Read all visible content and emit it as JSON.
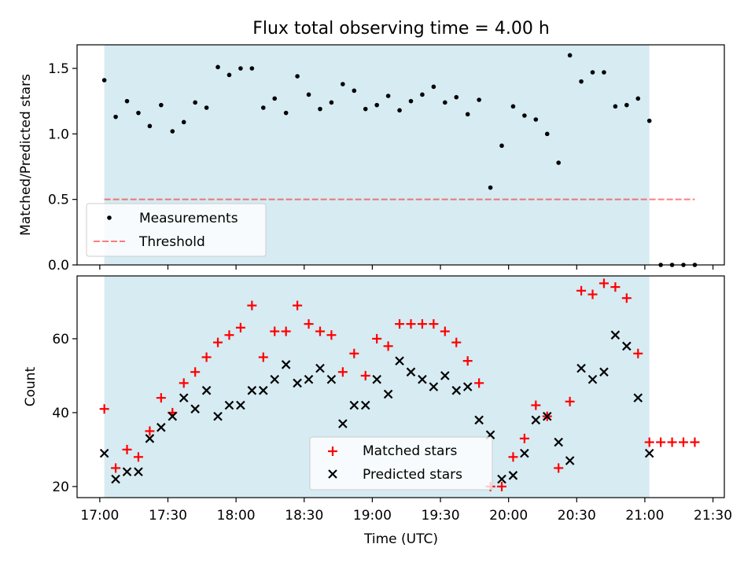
{
  "chart_data": [
    {
      "type": "scatter",
      "title": "Flux total observing time = 4.00 h",
      "ylabel": "Matched/Predicted stars",
      "ylim": [
        0,
        1.68
      ],
      "yticks": [
        "0.0",
        "0.5",
        "1.0",
        "1.5"
      ],
      "xlim_minutes": [
        1010,
        1295
      ],
      "grid": false,
      "legend_position": "lower-left",
      "observing_window": {
        "start": "17:02",
        "end": "21:02",
        "color": "#add8e6"
      },
      "threshold": {
        "name": "Threshold",
        "value": 0.5,
        "from": "17:02",
        "to": "21:22",
        "color": "#ff0000"
      },
      "series": [
        {
          "name": "Measurements",
          "color": "#000000",
          "marker": "dot",
          "x": [
            "17:02",
            "17:07",
            "17:12",
            "17:17",
            "17:22",
            "17:27",
            "17:32",
            "17:37",
            "17:42",
            "17:47",
            "17:52",
            "17:57",
            "18:02",
            "18:07",
            "18:12",
            "18:17",
            "18:22",
            "18:27",
            "18:32",
            "18:37",
            "18:42",
            "18:47",
            "18:52",
            "18:57",
            "19:02",
            "19:07",
            "19:12",
            "19:17",
            "19:22",
            "19:27",
            "19:32",
            "19:37",
            "19:42",
            "19:47",
            "19:52",
            "19:57",
            "20:02",
            "20:07",
            "20:12",
            "20:17",
            "20:22",
            "20:27",
            "20:32",
            "20:37",
            "20:42",
            "20:47",
            "20:52",
            "20:57",
            "21:02",
            "21:07",
            "21:12",
            "21:17",
            "21:22"
          ],
          "y": [
            1.41,
            1.13,
            1.25,
            1.16,
            1.06,
            1.22,
            1.02,
            1.09,
            1.24,
            1.2,
            1.51,
            1.45,
            1.5,
            1.5,
            1.2,
            1.27,
            1.16,
            1.44,
            1.3,
            1.19,
            1.24,
            1.38,
            1.33,
            1.19,
            1.22,
            1.29,
            1.18,
            1.25,
            1.3,
            1.36,
            1.24,
            1.28,
            1.15,
            1.26,
            0.59,
            0.91,
            1.21,
            1.14,
            1.11,
            1.0,
            0.78,
            1.6,
            1.4,
            1.47,
            1.47,
            1.21,
            1.22,
            1.27,
            1.1,
            0.0,
            0.0,
            0.0,
            0.0
          ]
        }
      ]
    },
    {
      "type": "scatter",
      "xlabel": "Time (UTC)",
      "ylabel": "Count",
      "ylim": [
        17,
        77
      ],
      "yticks": [
        "20",
        "40",
        "60"
      ],
      "xticks": [
        "17:00",
        "17:30",
        "18:00",
        "18:30",
        "19:00",
        "19:30",
        "20:00",
        "20:30",
        "21:00",
        "21:30"
      ],
      "xlim_minutes": [
        1010,
        1295
      ],
      "grid": false,
      "legend_position": "lower-center",
      "observing_window": {
        "start": "17:02",
        "end": "21:02",
        "color": "#add8e6"
      },
      "series": [
        {
          "name": "Matched stars",
          "color": "#ff0000",
          "marker": "plus",
          "x": [
            "17:02",
            "17:07",
            "17:12",
            "17:17",
            "17:22",
            "17:27",
            "17:32",
            "17:37",
            "17:42",
            "17:47",
            "17:52",
            "17:57",
            "18:02",
            "18:07",
            "18:12",
            "18:17",
            "18:22",
            "18:27",
            "18:32",
            "18:37",
            "18:42",
            "18:47",
            "18:52",
            "18:57",
            "19:02",
            "19:07",
            "19:12",
            "19:17",
            "19:22",
            "19:27",
            "19:32",
            "19:37",
            "19:42",
            "19:47",
            "19:52",
            "19:57",
            "20:02",
            "20:07",
            "20:12",
            "20:17",
            "20:22",
            "20:27",
            "20:32",
            "20:37",
            "20:42",
            "20:47",
            "20:52",
            "20:57",
            "21:02",
            "21:07",
            "21:12",
            "21:17",
            "21:22"
          ],
          "y": [
            41,
            25,
            30,
            28,
            35,
            44,
            40,
            48,
            51,
            55,
            59,
            61,
            63,
            69,
            55,
            62,
            62,
            69,
            64,
            62,
            61,
            51,
            56,
            50,
            60,
            58,
            64,
            64,
            64,
            64,
            62,
            59,
            54,
            48,
            20,
            20,
            28,
            33,
            42,
            39,
            25,
            43,
            73,
            72,
            75,
            74,
            71,
            56,
            32,
            32,
            32,
            32,
            32
          ]
        },
        {
          "name": "Predicted stars",
          "color": "#000000",
          "marker": "x",
          "x": [
            "17:02",
            "17:07",
            "17:12",
            "17:17",
            "17:22",
            "17:27",
            "17:32",
            "17:37",
            "17:42",
            "17:47",
            "17:52",
            "17:57",
            "18:02",
            "18:07",
            "18:12",
            "18:17",
            "18:22",
            "18:27",
            "18:32",
            "18:37",
            "18:42",
            "18:47",
            "18:52",
            "18:57",
            "19:02",
            "19:07",
            "19:12",
            "19:17",
            "19:22",
            "19:27",
            "19:32",
            "19:37",
            "19:42",
            "19:47",
            "19:52",
            "19:57",
            "20:02",
            "20:07",
            "20:12",
            "20:17",
            "20:22",
            "20:27",
            "20:32",
            "20:37",
            "20:42",
            "20:47",
            "20:52",
            "20:57",
            "21:02"
          ],
          "y": [
            29,
            22,
            24,
            24,
            33,
            36,
            39,
            44,
            41,
            46,
            39,
            42,
            42,
            46,
            46,
            49,
            53,
            48,
            49,
            52,
            49,
            37,
            42,
            42,
            49,
            45,
            54,
            51,
            49,
            47,
            50,
            46,
            47,
            38,
            34,
            22,
            23,
            29,
            38,
            39,
            32,
            27,
            52,
            49,
            51,
            61,
            58,
            44,
            29
          ]
        }
      ]
    }
  ]
}
